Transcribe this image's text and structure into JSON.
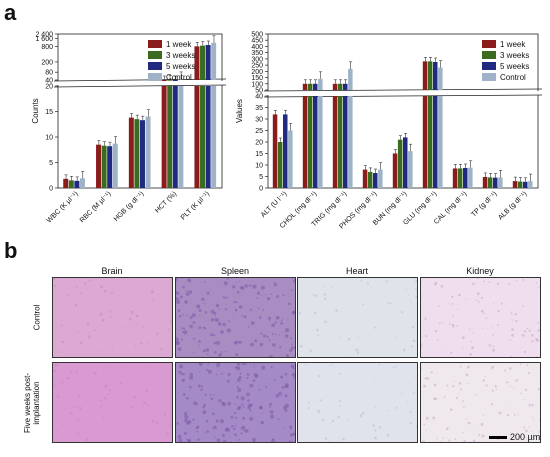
{
  "panel_a": {
    "letter": "a"
  },
  "panel_b": {
    "letter": "b"
  },
  "legend": [
    "1 week",
    "3 weeks",
    "5 weeks",
    "Control"
  ],
  "series_colors": [
    "#8b1c1c",
    "#3a6b1e",
    "#1f2a80",
    "#9fb3c8"
  ],
  "chart_data": [
    {
      "type": "bar",
      "ylabel": "Counts",
      "categories": [
        "WBC (K µl⁻¹)",
        "RBC (M µl⁻¹)",
        "HGB (g dl⁻¹)",
        "HCT (%)",
        "PLT (K µl⁻¹)"
      ],
      "y_ticks_lower": [
        "0",
        "5",
        "10",
        "15",
        "20"
      ],
      "y_ticks_upper": [
        "40",
        "80",
        "200",
        "800",
        "1 600",
        "2 400"
      ],
      "axis_break": "20–40",
      "series": [
        {
          "name": "1 week",
          "values": [
            1.8,
            8.5,
            13.8,
            40,
            800
          ]
        },
        {
          "name": "3 weeks",
          "values": [
            1.5,
            8.3,
            13.5,
            41,
            850
          ]
        },
        {
          "name": "5 weeks",
          "values": [
            1.4,
            8.2,
            13.3,
            40,
            900
          ]
        },
        {
          "name": "Control",
          "values": [
            1.9,
            8.7,
            14.0,
            44,
            1100
          ]
        }
      ],
      "legend_position": "top-right"
    },
    {
      "type": "bar",
      "ylabel": "Values",
      "categories": [
        "ALT (U l⁻¹)",
        "CHOL (mg dl⁻¹)",
        "TRIG (mg dl⁻¹)",
        "PHOS (mg dl⁻¹)",
        "BUN (mg dl⁻¹)",
        "GLU (mg dl⁻¹)",
        "CAL (mg dl⁻¹)",
        "TP (g dl⁻¹)",
        "ALB (g dl⁻¹)"
      ],
      "y_ticks_lower": [
        "0",
        "5",
        "10",
        "15",
        "20",
        "25",
        "30",
        "35",
        "40"
      ],
      "y_ticks_upper": [
        "50",
        "100",
        "150",
        "200",
        "250",
        "300",
        "350",
        "400",
        "450",
        "500"
      ],
      "axis_break": "40–50",
      "series": [
        {
          "name": "1 week",
          "values": [
            32,
            100,
            100,
            8,
            15,
            280,
            8.5,
            4.8,
            3.0
          ]
        },
        {
          "name": "3 weeks",
          "values": [
            20,
            100,
            100,
            7,
            21,
            280,
            8.5,
            4.6,
            2.8
          ]
        },
        {
          "name": "5 weeks",
          "values": [
            32,
            100,
            100,
            6.5,
            22,
            275,
            8.7,
            4.5,
            2.7
          ]
        },
        {
          "name": "Control",
          "values": [
            25,
            140,
            220,
            8,
            16,
            230,
            8.8,
            4.6,
            3.0
          ]
        }
      ],
      "legend_position": "top-right"
    }
  ],
  "histology": {
    "columns": [
      "Brain",
      "Spleen",
      "Heart",
      "Kidney"
    ],
    "rows": [
      "Control",
      "Five weeks post-implantation"
    ],
    "scale_label": "200 µm",
    "tile_colors": [
      [
        "#dca9d2",
        "#a88cc2",
        "#dfe3ea",
        "#efdfee"
      ],
      [
        "#d89ad0",
        "#a48ac6",
        "#e1e3ec",
        "#efe9ee"
      ]
    ]
  }
}
